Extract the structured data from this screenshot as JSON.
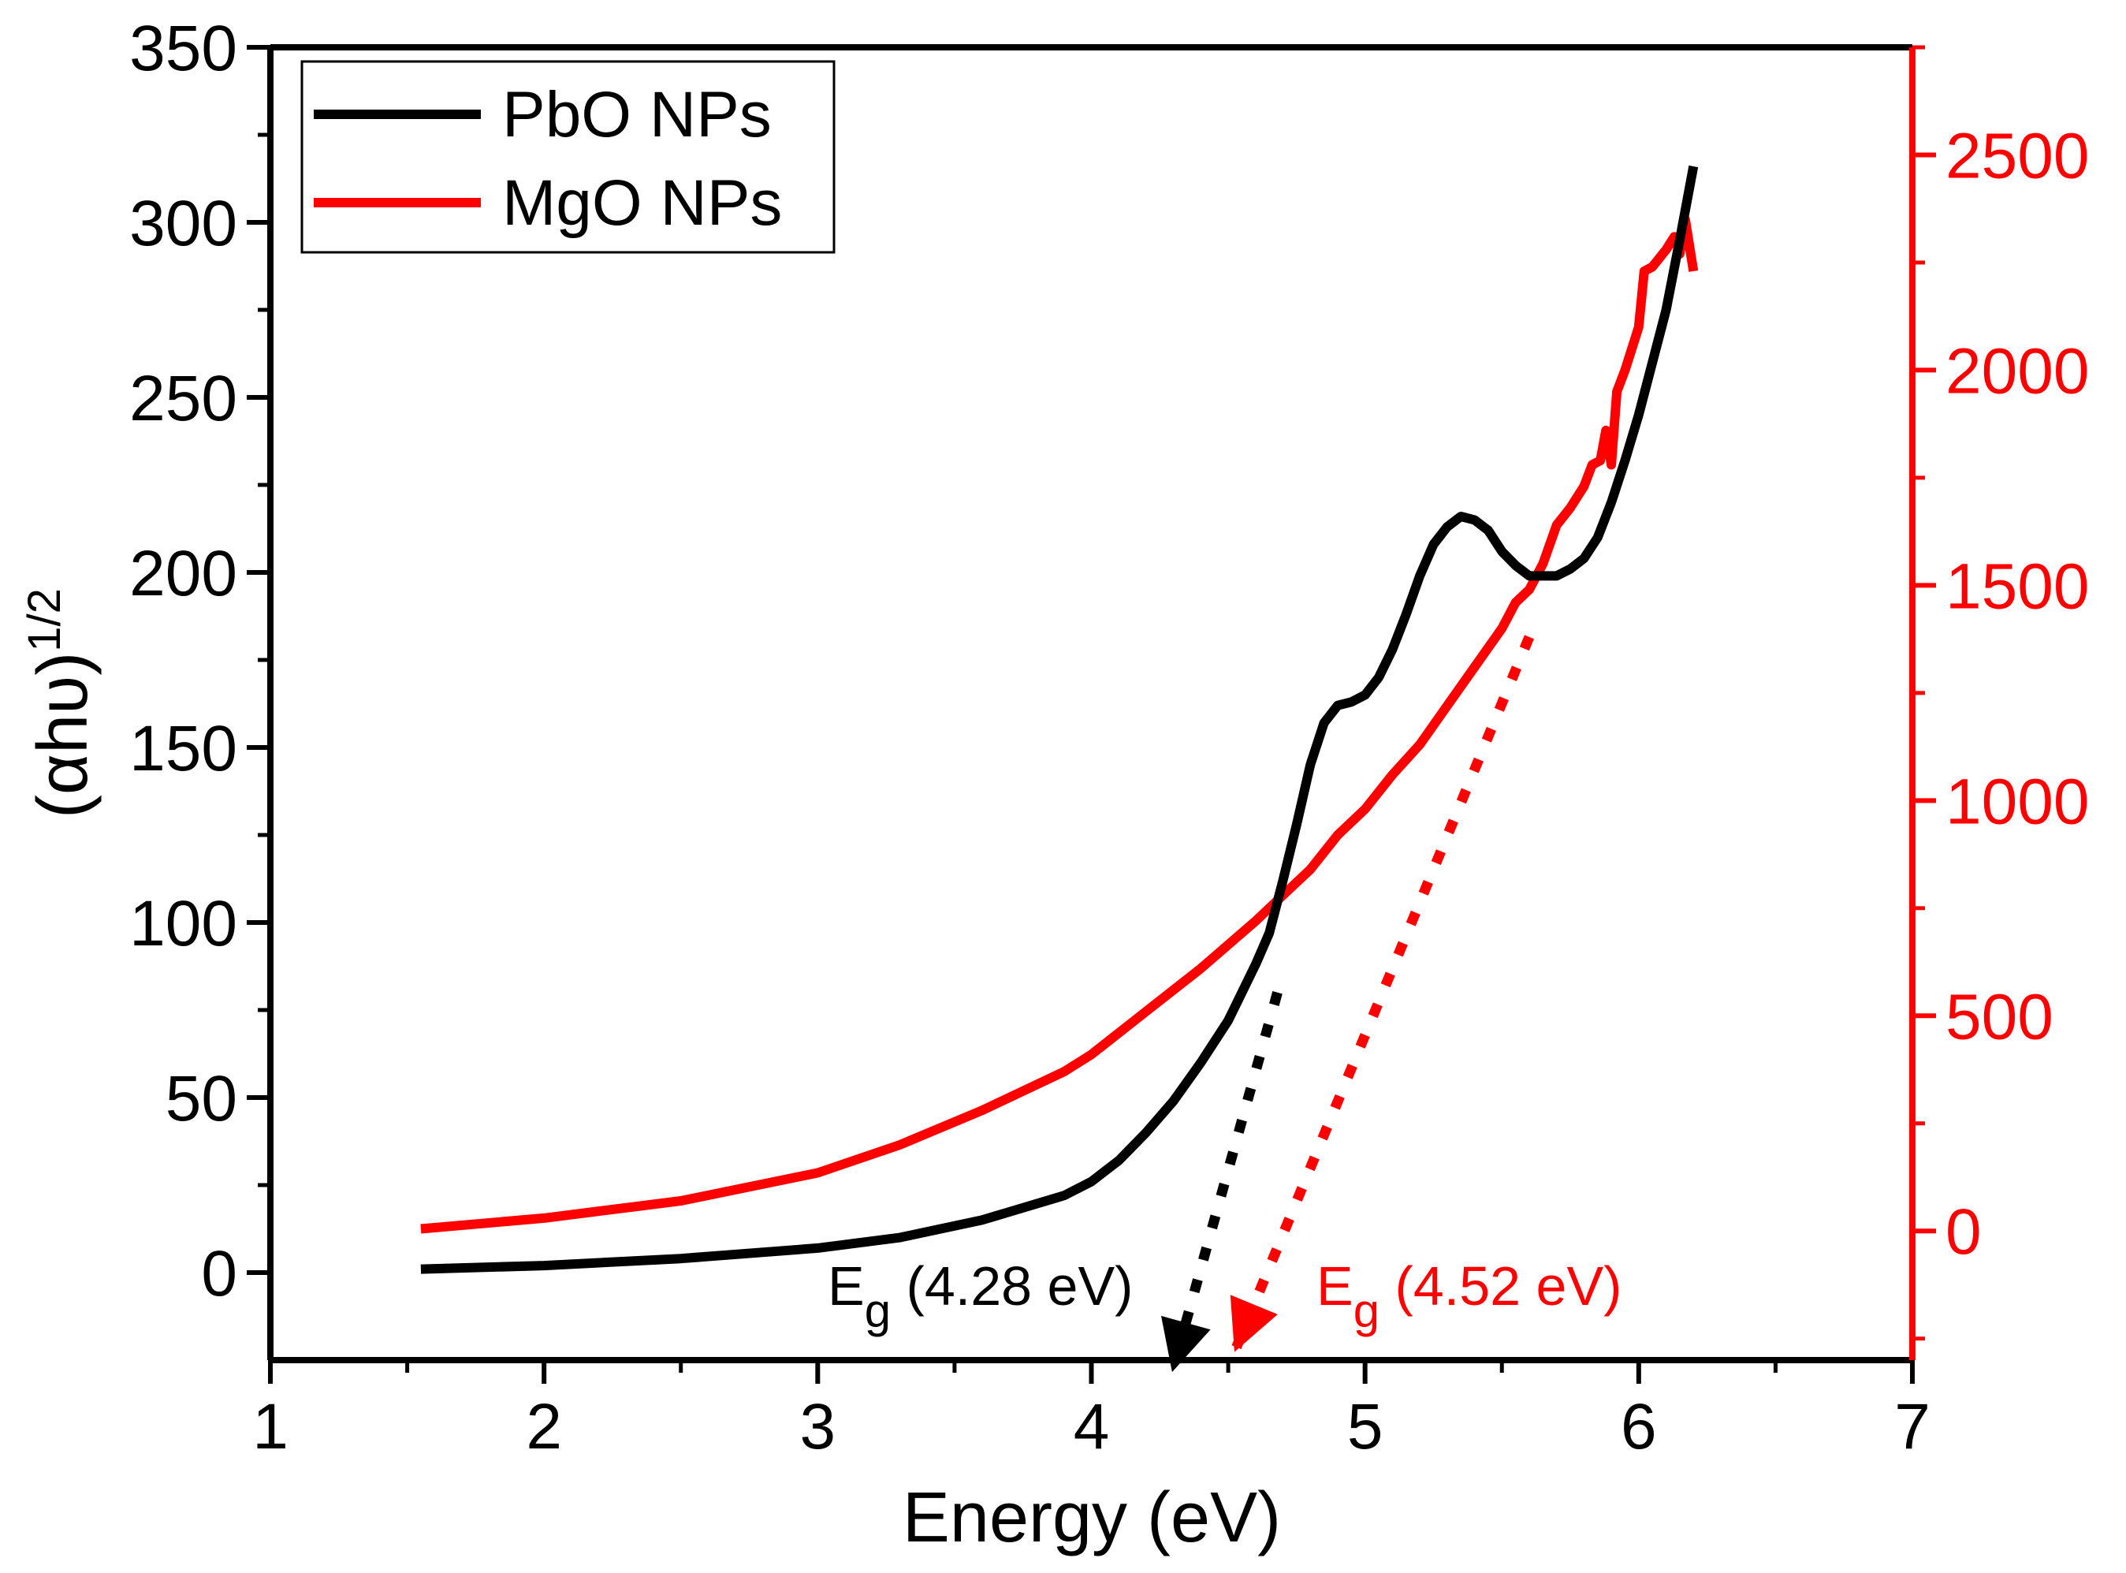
{
  "chart_data": {
    "type": "line",
    "title": "",
    "xlabel": "Energy (eV)",
    "ylabel_left": {
      "base": "(αhυ)",
      "sup": "1/2"
    },
    "ylabel_right": "",
    "xlim": [
      1,
      7
    ],
    "ylim_left": [
      -25,
      350
    ],
    "ylim_right": [
      -300,
      2750
    ],
    "x_ticks": [
      1,
      2,
      3,
      4,
      5,
      6,
      7
    ],
    "y_left_ticks": [
      0,
      50,
      100,
      150,
      200,
      250,
      300,
      350
    ],
    "y_right_ticks": [
      0,
      500,
      1000,
      1500,
      2000,
      2500
    ],
    "grid": false,
    "legend_position": "top-left",
    "colors": {
      "pbo": "#000000",
      "mgo": "#ff0000"
    },
    "series": [
      {
        "name": "PbO NPs",
        "axis": "left",
        "color": "#000000",
        "x": [
          1.55,
          2.0,
          2.5,
          3.0,
          3.3,
          3.6,
          3.9,
          4.0,
          4.1,
          4.2,
          4.3,
          4.4,
          4.5,
          4.6,
          4.65,
          4.7,
          4.75,
          4.8,
          4.85,
          4.9,
          4.95,
          5.0,
          5.05,
          5.1,
          5.15,
          5.2,
          5.25,
          5.3,
          5.35,
          5.4,
          5.45,
          5.5,
          5.55,
          5.6,
          5.65,
          5.7,
          5.75,
          5.8,
          5.85,
          5.9,
          5.95,
          6.0,
          6.05,
          6.1,
          6.15,
          6.2
        ],
        "y": [
          1,
          2,
          4,
          7,
          10,
          15,
          22,
          26,
          32,
          40,
          49,
          60,
          72,
          88,
          97,
          112,
          128,
          145,
          157,
          162,
          163,
          165,
          170,
          178,
          188,
          199,
          208,
          213,
          216,
          215,
          212,
          206,
          202,
          199,
          199,
          199,
          201,
          204,
          210,
          220,
          232,
          245,
          260,
          275,
          295,
          316
        ]
      },
      {
        "name": "MgO NPs",
        "axis": "right",
        "color": "#ff0000",
        "x": [
          1.55,
          2.0,
          2.5,
          3.0,
          3.3,
          3.6,
          3.9,
          4.0,
          4.2,
          4.4,
          4.6,
          4.7,
          4.8,
          4.9,
          5.0,
          5.1,
          5.2,
          5.3,
          5.4,
          5.5,
          5.55,
          5.6,
          5.65,
          5.7,
          5.75,
          5.8,
          5.83,
          5.86,
          5.88,
          5.9,
          5.92,
          5.95,
          6.0,
          6.02,
          6.05,
          6.1,
          6.13,
          6.15,
          6.17,
          6.2
        ],
        "y": [
          5,
          30,
          70,
          135,
          200,
          280,
          370,
          410,
          510,
          610,
          720,
          780,
          840,
          920,
          980,
          1060,
          1130,
          1220,
          1310,
          1400,
          1460,
          1490,
          1550,
          1640,
          1680,
          1730,
          1780,
          1790,
          1860,
          1780,
          1950,
          2000,
          2100,
          2230,
          2240,
          2280,
          2310,
          2270,
          2350,
          2230
        ]
      }
    ],
    "annotations": [
      {
        "id": "eg-pbo",
        "label_main": "E",
        "label_sub": "g",
        "label_rest": " (4.28 eV)",
        "color": "#000000",
        "axis": "left",
        "line_from": [
          4.68,
          80
        ],
        "line_to": [
          4.3,
          -27
        ]
      },
      {
        "id": "eg-mgo",
        "label_main": "E",
        "label_sub": "g",
        "label_rest": " (4.52 eV)",
        "color": "#ff0000",
        "axis": "right",
        "line_from": [
          5.6,
          1380
        ],
        "line_to": [
          4.53,
          -270
        ]
      }
    ]
  }
}
